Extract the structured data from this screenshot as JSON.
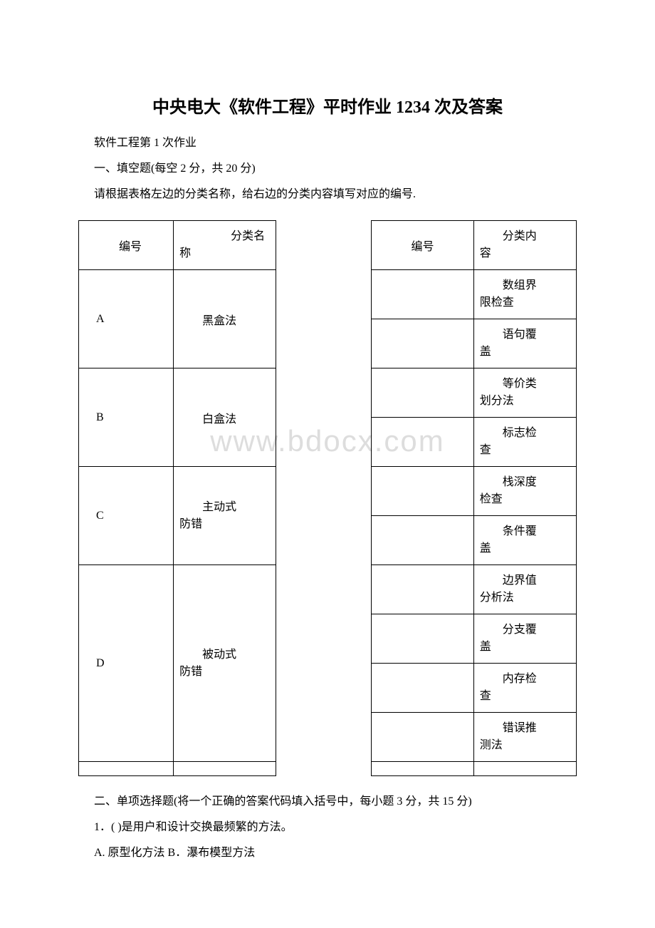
{
  "title": "中央电大《软件工程》平时作业 1234 次及答案",
  "subtitle": "软件工程第 1 次作业",
  "section1_title": "一、填空题(每空 2 分，共 20 分)",
  "section1_instruction": "请根据表格左边的分类名称，给右边的分类内容填写对应的编号.",
  "watermark": "www.bdocx.com",
  "table": {
    "headers": {
      "id_label": "编号",
      "name_label": "分类名称",
      "num_label": "编号",
      "content_label": "分类内容"
    },
    "left_rows": [
      {
        "id": "A",
        "name": "黑盒法",
        "rowspan": 2
      },
      {
        "id": "B",
        "name": "白盒法",
        "rowspan": 2
      },
      {
        "id": "C",
        "name": "主动式防错",
        "rowspan": 2
      },
      {
        "id": "D",
        "name": "被动式防错",
        "rowspan": 4
      }
    ],
    "right_rows": [
      "数组界限检查",
      "语句覆盖",
      "等价类划分法",
      "标志检查",
      "栈深度检查",
      "条件覆盖",
      "边界值分析法",
      "分支覆盖",
      "内存检查",
      "错误推测法"
    ]
  },
  "section2_title": "二、单项选择题(将一个正确的答案代码填入括号中，每小题 3 分，共 15 分)",
  "question1": "1．( )是用户和设计交换最频繁的方法。",
  "question1_options": "A. 原型化方法 B．瀑布模型方法",
  "colors": {
    "text": "#000000",
    "background": "#ffffff",
    "border": "#000000",
    "watermark": "#dddddd"
  },
  "fonts": {
    "title_size": 24,
    "body_size": 16,
    "watermark_size": 42
  }
}
